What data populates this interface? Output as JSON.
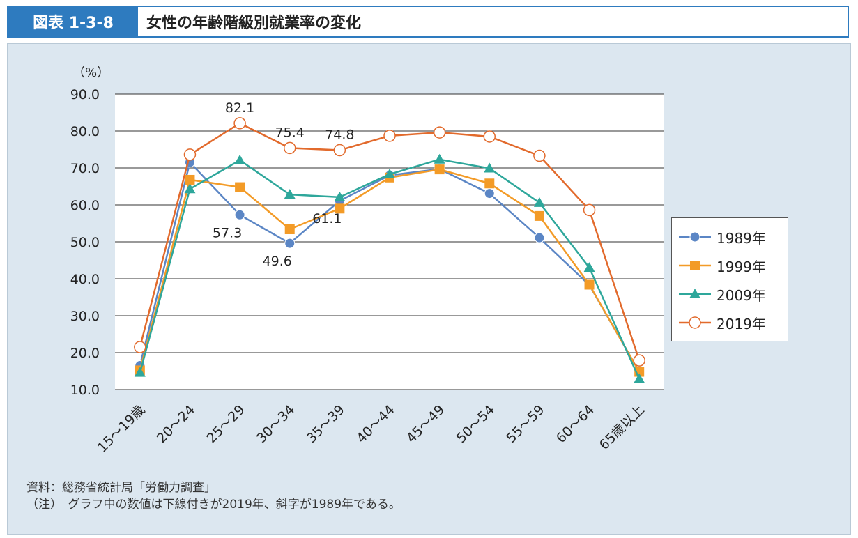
{
  "header": {
    "label": "図表 1-3-8",
    "title": "女性の年齢階級別就業率の変化"
  },
  "notes": {
    "source": "資料：総務省統計局「労働力調査」",
    "note": "（注）　グラフ中の数値は下線付きが2019年、斜字が1989年である。"
  },
  "chart_data": {
    "type": "line",
    "ylabel": "（%）",
    "ylim": [
      10,
      90
    ],
    "yticks": [
      "10.0",
      "20.0",
      "30.0",
      "40.0",
      "50.0",
      "60.0",
      "70.0",
      "80.0",
      "90.0"
    ],
    "categories": [
      "15～19歳",
      "20～24",
      "25～29",
      "30～34",
      "35～39",
      "40～44",
      "45～49",
      "50～54",
      "55～59",
      "60～64",
      "65歳以上"
    ],
    "grid": true,
    "legend_position": "right",
    "series": [
      {
        "name": "1989年",
        "color": "#5b86c5",
        "marker": "circle",
        "values": [
          16.5,
          71.5,
          57.3,
          49.6,
          61.1,
          68.0,
          69.7,
          63.1,
          51.1,
          38.3,
          14.8
        ]
      },
      {
        "name": "1999年",
        "color": "#f39b27",
        "marker": "square",
        "values": [
          15.2,
          66.8,
          64.8,
          53.4,
          59.0,
          67.4,
          69.6,
          65.8,
          57.0,
          38.4,
          14.8
        ]
      },
      {
        "name": "2009年",
        "color": "#2ea79b",
        "marker": "triangle",
        "values": [
          14.6,
          64.3,
          72.1,
          62.8,
          62.1,
          68.3,
          72.3,
          69.9,
          60.6,
          43.0,
          12.9
        ]
      },
      {
        "name": "2019年",
        "color": "#e26a2c",
        "marker": "open-circle",
        "values": [
          21.5,
          73.6,
          82.1,
          75.4,
          74.8,
          78.7,
          79.6,
          78.5,
          73.3,
          58.6,
          17.9
        ]
      }
    ],
    "annotations": [
      {
        "series": "2019年",
        "category": "25～29",
        "text": "82.1"
      },
      {
        "series": "2019年",
        "category": "30～34",
        "text": "75.4"
      },
      {
        "series": "2019年",
        "category": "35～39",
        "text": "74.8"
      },
      {
        "series": "1989年",
        "category": "25～29",
        "text": "57.3"
      },
      {
        "series": "1989年",
        "category": "30～34",
        "text": "49.6"
      },
      {
        "series": "1989年",
        "category": "35～39",
        "text": "61.1"
      }
    ]
  }
}
